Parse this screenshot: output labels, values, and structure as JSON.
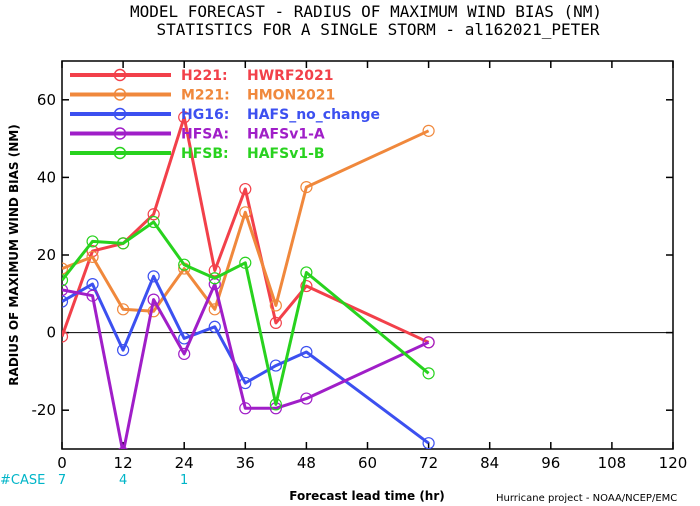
{
  "chart_data": {
    "type": "line",
    "title_line1": "MODEL FORECAST - RADIUS OF MAXIMUM WIND BIAS (NM)",
    "title_line2": "STATISTICS FOR A SINGLE STORM - al162021_PETER",
    "ylabel": "RADIUS OF MAXIMUM WIND BIAS (NM)",
    "xlabel": "Forecast lead time (hr)",
    "credit": "Hurricane project - NOAA/NCEP/EMC",
    "xlim": [
      0,
      120
    ],
    "ylim": [
      -30,
      70
    ],
    "xticks": [
      0,
      12,
      24,
      36,
      48,
      60,
      72,
      84,
      96,
      108,
      120
    ],
    "yticks": [
      -20,
      0,
      20,
      40,
      60
    ],
    "grid": false,
    "legend_position": "top-left",
    "series": [
      {
        "code": "H221",
        "name": "HWRF2021",
        "color": "#f2404a",
        "x": [
          0,
          6,
          12,
          18,
          24,
          30,
          36,
          42,
          48,
          72
        ],
        "y": [
          -1,
          21,
          23,
          30.5,
          55.5,
          16,
          37,
          2.5,
          12,
          -2.5
        ]
      },
      {
        "code": "M221",
        "name": "HMON2021",
        "color": "#f0883c",
        "x": [
          0,
          6,
          12,
          18,
          24,
          30,
          36,
          42,
          48,
          72
        ],
        "y": [
          16.5,
          19.5,
          6,
          5.5,
          16.5,
          6,
          31,
          7,
          37.5,
          52
        ]
      },
      {
        "code": "HG16",
        "name": "HAFS_no_change",
        "color": "#3c50f0",
        "x": [
          0,
          6,
          12,
          18,
          24,
          30,
          36,
          42,
          48,
          72
        ],
        "y": [
          8,
          12.5,
          -4.5,
          14.5,
          -1.5,
          1.5,
          -13,
          -8.5,
          -5,
          -28.5
        ]
      },
      {
        "code": "HFSA",
        "name": "HAFSv1-A",
        "color": "#a01ec8",
        "x": [
          0,
          6,
          12,
          18,
          24,
          30,
          36,
          42,
          48,
          72
        ],
        "y": [
          11,
          9.5,
          -31,
          8.5,
          -5.5,
          12.5,
          -19.5,
          -19.5,
          -17,
          -2.5
        ]
      },
      {
        "code": "HFSB",
        "name": "HAFSv1-B",
        "color": "#28d21e",
        "x": [
          0,
          6,
          12,
          18,
          24,
          30,
          36,
          42,
          48,
          72
        ],
        "y": [
          13.5,
          23.5,
          23,
          28.5,
          17.5,
          14,
          18,
          -18.5,
          15.5,
          -10.5
        ]
      }
    ],
    "case_label": "#CASE",
    "cases": [
      {
        "x": 0,
        "count": "7"
      },
      {
        "x": 12,
        "count": "4"
      },
      {
        "x": 24,
        "count": "1"
      }
    ]
  }
}
